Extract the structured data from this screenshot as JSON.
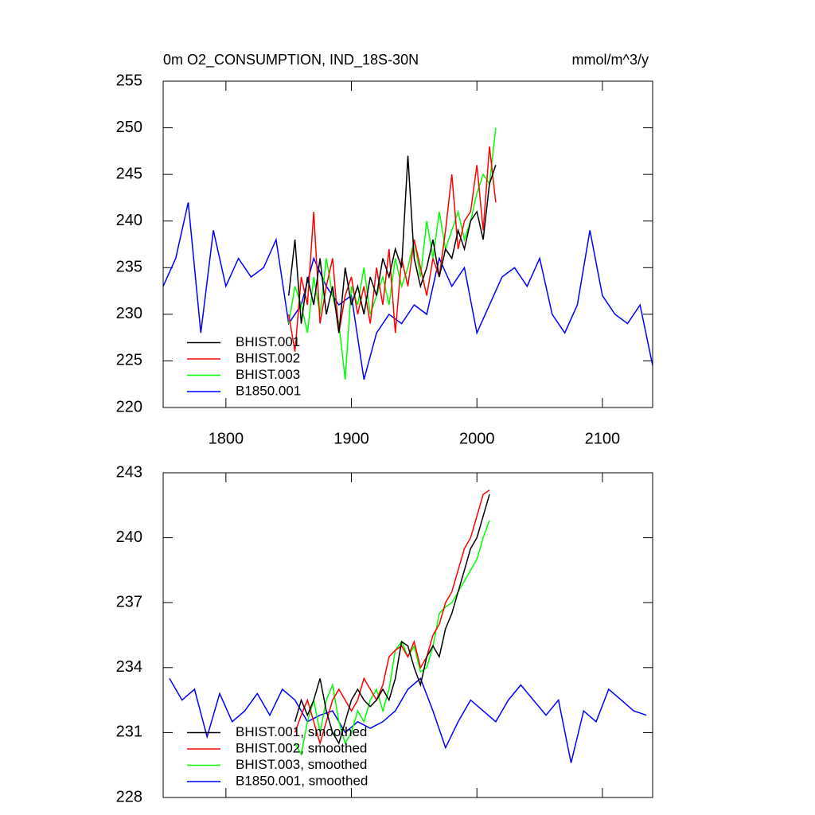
{
  "chart_data": [
    {
      "type": "line",
      "title": "0m O2_CONSUMPTION, IND_18S-30N",
      "units": "mmol/m^3/y",
      "xlim": [
        1750,
        2140
      ],
      "xticks": [
        1800,
        1900,
        2000,
        2100
      ],
      "xticklabels": true,
      "ylim": [
        220,
        255
      ],
      "yticks": [
        220,
        225,
        230,
        235,
        240,
        245,
        250,
        255
      ],
      "legend": "lower left",
      "series": [
        {
          "name": "BHIST.001",
          "color": "#000000",
          "x": [
            1850,
            1855,
            1860,
            1865,
            1870,
            1875,
            1880,
            1885,
            1890,
            1895,
            1900,
            1905,
            1910,
            1915,
            1920,
            1925,
            1930,
            1935,
            1940,
            1945,
            1950,
            1955,
            1960,
            1965,
            1970,
            1975,
            1980,
            1985,
            1990,
            1995,
            2000,
            2005,
            2010,
            2015
          ],
          "values": [
            232,
            238,
            229,
            234,
            231,
            236,
            230,
            233,
            228,
            235,
            231,
            233,
            230,
            234,
            232,
            236,
            234,
            237,
            235,
            247,
            236,
            233,
            235,
            238,
            234,
            237,
            236,
            239,
            237,
            240,
            241,
            238,
            244,
            246
          ]
        },
        {
          "name": "BHIST.002",
          "color": "#ff0000",
          "x": [
            1850,
            1855,
            1860,
            1865,
            1870,
            1875,
            1880,
            1885,
            1890,
            1895,
            1900,
            1905,
            1910,
            1915,
            1920,
            1925,
            1930,
            1935,
            1940,
            1945,
            1950,
            1955,
            1960,
            1965,
            1970,
            1975,
            1980,
            1985,
            1990,
            1995,
            2000,
            2005,
            2010,
            2015
          ],
          "values": [
            230,
            226,
            234,
            231,
            241,
            229,
            233,
            236,
            228,
            232,
            234,
            230,
            233,
            229,
            235,
            231,
            237,
            228,
            236,
            233,
            238,
            235,
            232,
            236,
            234,
            239,
            245,
            237,
            240,
            241,
            246,
            239,
            248,
            242
          ]
        },
        {
          "name": "BHIST.003",
          "color": "#00ff00",
          "x": [
            1850,
            1855,
            1860,
            1865,
            1870,
            1875,
            1880,
            1885,
            1890,
            1895,
            1900,
            1905,
            1910,
            1915,
            1920,
            1925,
            1930,
            1935,
            1940,
            1945,
            1950,
            1955,
            1960,
            1965,
            1970,
            1975,
            1980,
            1985,
            1990,
            1995,
            2000,
            2005,
            2010,
            2015
          ],
          "values": [
            229,
            233,
            231,
            228,
            234,
            230,
            236,
            232,
            229,
            223,
            233,
            231,
            235,
            230,
            232,
            234,
            231,
            236,
            233,
            235,
            238,
            234,
            240,
            236,
            241,
            237,
            239,
            241,
            238,
            240,
            243,
            245,
            244,
            250
          ]
        },
        {
          "name": "B1850.001",
          "color": "#0000ff",
          "x": [
            1750,
            1760,
            1770,
            1780,
            1790,
            1800,
            1810,
            1820,
            1830,
            1840,
            1850,
            1860,
            1870,
            1880,
            1890,
            1900,
            1910,
            1920,
            1930,
            1940,
            1950,
            1960,
            1970,
            1980,
            1990,
            2000,
            2010,
            2020,
            2030,
            2040,
            2050,
            2060,
            2070,
            2080,
            2090,
            2100,
            2110,
            2120,
            2130,
            2140
          ],
          "values": [
            233,
            236,
            242,
            228,
            239,
            233,
            236,
            234,
            235,
            238,
            229,
            231,
            236,
            233,
            231,
            232,
            223,
            228,
            230,
            229,
            231,
            230,
            236,
            233,
            235,
            228,
            231,
            234,
            235,
            233,
            236,
            230,
            228,
            231,
            239,
            232,
            230,
            229,
            231,
            224.5
          ]
        }
      ]
    },
    {
      "type": "line",
      "xlim": [
        1750,
        2140
      ],
      "xticks": [
        1800,
        1900,
        2000,
        2100
      ],
      "xticklabels": false,
      "ylim": [
        228,
        243
      ],
      "yticks": [
        228,
        231,
        234,
        237,
        240,
        243
      ],
      "legend": "lower left",
      "series": [
        {
          "name": "BHIST.001, smoothed",
          "color": "#000000",
          "x": [
            1855,
            1860,
            1865,
            1870,
            1875,
            1880,
            1885,
            1890,
            1895,
            1900,
            1905,
            1910,
            1915,
            1920,
            1925,
            1930,
            1935,
            1940,
            1945,
            1950,
            1955,
            1960,
            1965,
            1970,
            1975,
            1980,
            1985,
            1990,
            1995,
            2000,
            2005,
            2010
          ],
          "values": [
            231.5,
            232.5,
            231.8,
            232.5,
            233.5,
            232.0,
            231.0,
            230.5,
            231.5,
            232.5,
            233.0,
            232.5,
            232.2,
            232.5,
            233.0,
            232.5,
            233.5,
            235.2,
            235.0,
            234.0,
            233.2,
            234.5,
            235.0,
            234.5,
            235.8,
            236.5,
            237.5,
            238.5,
            239.5,
            240.0,
            241.0,
            242.0
          ]
        },
        {
          "name": "BHIST.002, smoothed",
          "color": "#ff0000",
          "x": [
            1855,
            1860,
            1865,
            1870,
            1875,
            1880,
            1885,
            1890,
            1895,
            1900,
            1905,
            1910,
            1915,
            1920,
            1925,
            1930,
            1935,
            1940,
            1945,
            1950,
            1955,
            1960,
            1965,
            1970,
            1975,
            1980,
            1985,
            1990,
            1995,
            2000,
            2005,
            2010
          ],
          "values": [
            231.0,
            231.8,
            232.5,
            231.5,
            230.5,
            231.5,
            232.5,
            233.0,
            232.5,
            232.0,
            232.5,
            233.5,
            233.0,
            232.5,
            233.2,
            234.5,
            234.8,
            235.0,
            234.5,
            235.2,
            234.0,
            234.5,
            235.5,
            236.0,
            237.0,
            237.5,
            238.5,
            239.5,
            240.0,
            241.0,
            242.0,
            242.2
          ]
        },
        {
          "name": "BHIST.003, smoothed",
          "color": "#00ff00",
          "x": [
            1855,
            1860,
            1865,
            1870,
            1875,
            1880,
            1885,
            1890,
            1895,
            1900,
            1905,
            1910,
            1915,
            1920,
            1925,
            1930,
            1935,
            1940,
            1945,
            1950,
            1955,
            1960,
            1965,
            1970,
            1975,
            1980,
            1985,
            1990,
            1995,
            2000,
            2005,
            2010
          ],
          "values": [
            230.5,
            230.0,
            231.5,
            232.5,
            231.0,
            232.5,
            233.2,
            231.5,
            230.5,
            231.0,
            232.0,
            231.5,
            232.5,
            233.0,
            232.0,
            233.0,
            234.8,
            235.2,
            234.5,
            235.0,
            233.8,
            234.0,
            235.0,
            236.5,
            236.8,
            237.0,
            237.5,
            238.0,
            238.5,
            239.0,
            240.0,
            240.8
          ]
        },
        {
          "name": "B1850.001, smoothed",
          "color": "#0000ff",
          "x": [
            1755,
            1765,
            1775,
            1785,
            1795,
            1805,
            1815,
            1825,
            1835,
            1845,
            1855,
            1865,
            1875,
            1885,
            1895,
            1905,
            1915,
            1925,
            1935,
            1945,
            1955,
            1965,
            1975,
            1985,
            1995,
            2005,
            2015,
            2025,
            2035,
            2045,
            2055,
            2065,
            2075,
            2085,
            2095,
            2105,
            2115,
            2125,
            2135
          ],
          "values": [
            233.5,
            232.5,
            233.0,
            230.8,
            232.8,
            231.5,
            232.0,
            232.8,
            231.8,
            233.0,
            232.5,
            231.5,
            231.8,
            232.0,
            231.0,
            231.5,
            231.2,
            231.5,
            232.0,
            233.0,
            233.5,
            232.0,
            230.3,
            231.5,
            232.5,
            232.0,
            231.5,
            232.5,
            233.2,
            232.5,
            231.8,
            232.5,
            229.6,
            232.0,
            231.5,
            233.0,
            232.5,
            232.0,
            231.8
          ]
        }
      ]
    }
  ]
}
